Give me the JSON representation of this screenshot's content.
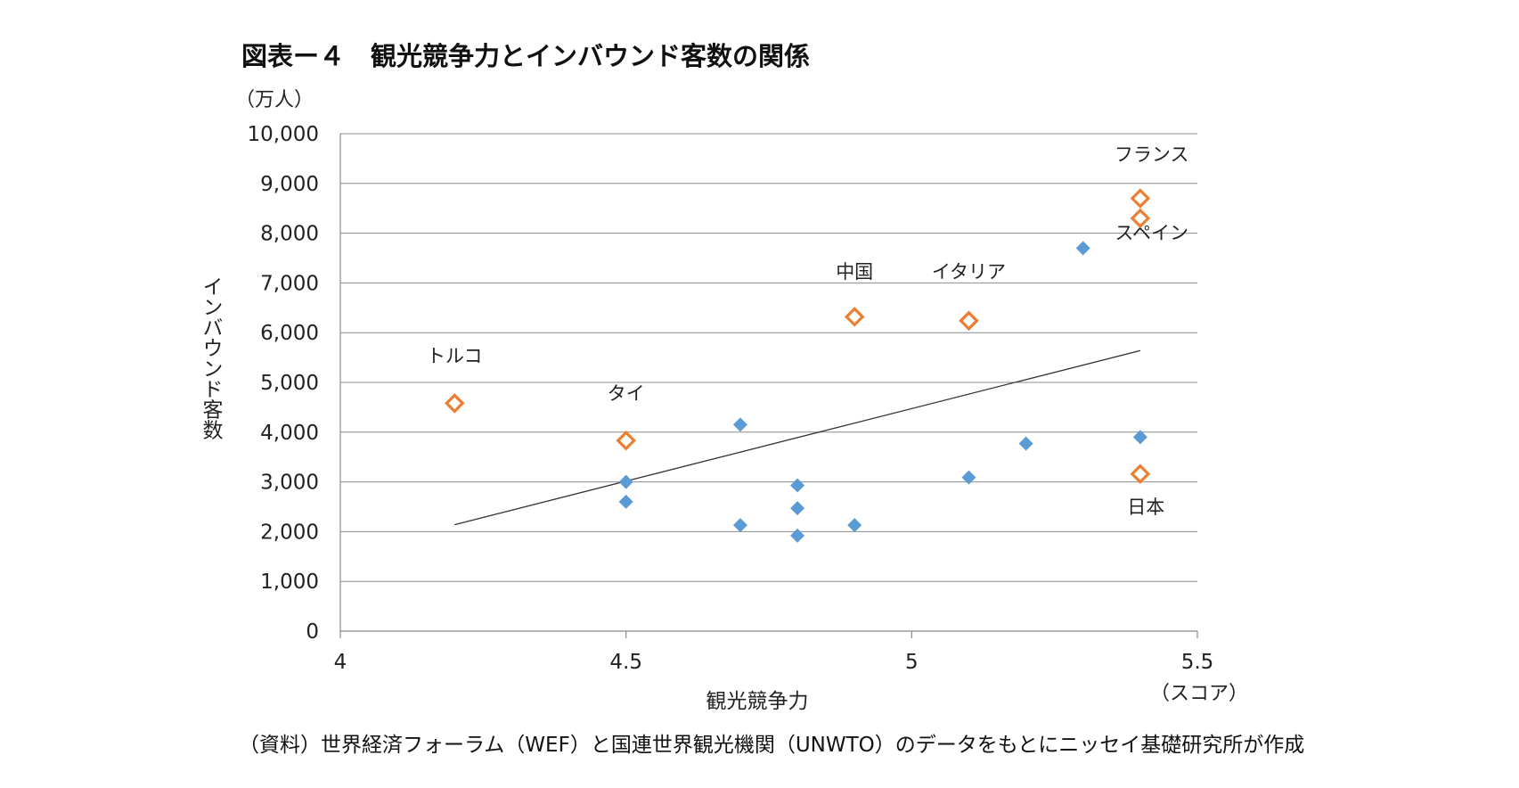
{
  "chart_data": {
    "type": "scatter",
    "title": "図表ー４　観光競争力とインバウンド客数の関係",
    "y_unit": "（万人）",
    "x_unit": "（スコア）",
    "xlabel": "観光競争力",
    "ylabel": "インバウンド客数",
    "xlim": [
      4,
      5.5
    ],
    "ylim": [
      0,
      10000
    ],
    "x_ticks": [
      {
        "value": 4,
        "label": "4"
      },
      {
        "value": 4.5,
        "label": "4.5"
      },
      {
        "value": 5,
        "label": "5"
      },
      {
        "value": 5.5,
        "label": "5.5"
      }
    ],
    "y_ticks": [
      {
        "value": 0,
        "label": "0"
      },
      {
        "value": 1000,
        "label": "1,000"
      },
      {
        "value": 2000,
        "label": "2,000"
      },
      {
        "value": 3000,
        "label": "3,000"
      },
      {
        "value": 4000,
        "label": "4,000"
      },
      {
        "value": 5000,
        "label": "5,000"
      },
      {
        "value": 6000,
        "label": "6,000"
      },
      {
        "value": 7000,
        "label": "7,000"
      },
      {
        "value": 8000,
        "label": "8,000"
      },
      {
        "value": 9000,
        "label": "9,000"
      },
      {
        "value": 10000,
        "label": "10,000"
      }
    ],
    "grid": true,
    "series": [
      {
        "marker": "filled-diamond",
        "color": "#5b9bd5",
        "points": [
          {
            "x": 4.5,
            "y": 3000
          },
          {
            "x": 4.5,
            "y": 2600
          },
          {
            "x": 4.7,
            "y": 4150
          },
          {
            "x": 4.7,
            "y": 2130
          },
          {
            "x": 4.8,
            "y": 2930
          },
          {
            "x": 4.8,
            "y": 2470
          },
          {
            "x": 4.8,
            "y": 1920
          },
          {
            "x": 4.9,
            "y": 2130
          },
          {
            "x": 5.1,
            "y": 3090
          },
          {
            "x": 5.2,
            "y": 3770
          },
          {
            "x": 5.3,
            "y": 7700
          },
          {
            "x": 5.4,
            "y": 3900
          }
        ]
      },
      {
        "marker": "hollow-diamond",
        "color": "#ed7d31",
        "points": [
          {
            "x": 4.2,
            "y": 4580
          },
          {
            "x": 4.5,
            "y": 3830
          },
          {
            "x": 4.9,
            "y": 6320
          },
          {
            "x": 5.1,
            "y": 6240
          },
          {
            "x": 5.4,
            "y": 8700
          },
          {
            "x": 5.4,
            "y": 8300
          },
          {
            "x": 5.4,
            "y": 3160
          }
        ]
      }
    ],
    "trendline": {
      "x": [
        4.2,
        5.4
      ],
      "y": [
        2140,
        5640
      ]
    },
    "annotations": [
      {
        "text": "トルコ",
        "x": 4.2,
        "y": 5400
      },
      {
        "text": "タイ",
        "x": 4.5,
        "y": 4650
      },
      {
        "text": "中国",
        "x": 4.9,
        "y": 7100
      },
      {
        "text": "イタリア",
        "x": 5.1,
        "y": 7100
      },
      {
        "text": "フランス",
        "x": 5.42,
        "y": 9450
      },
      {
        "text": "スペイン",
        "x": 5.42,
        "y": 7880
      },
      {
        "text": "日本",
        "x": 5.41,
        "y": 2370
      }
    ]
  },
  "source": "（資料）世界経済フォーラム（WEF）と国連世界観光機関（UNWTO）のデータをもとにニッセイ基礎研究所が作成"
}
